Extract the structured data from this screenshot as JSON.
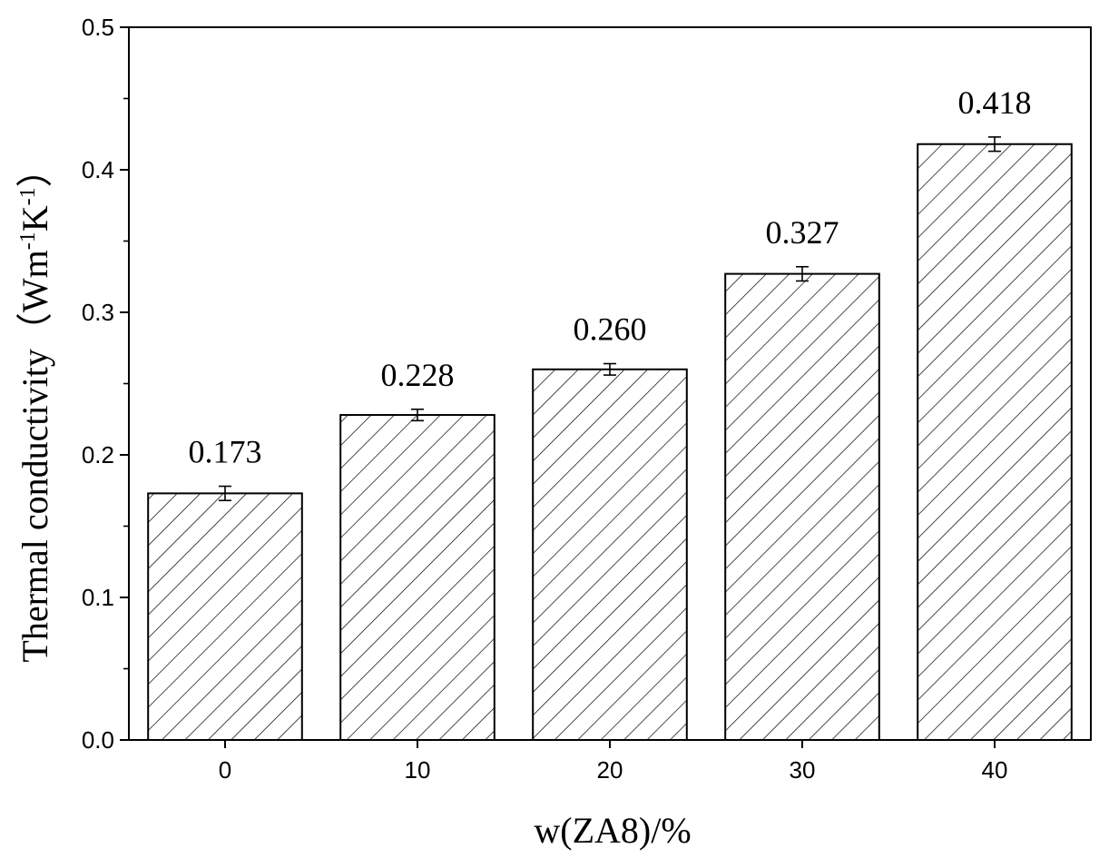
{
  "chart_data": {
    "type": "bar",
    "title": "",
    "xlabel": "w(ZA8)/%",
    "ylabel": {
      "main": "Thermal conductivity（Wm",
      "sup1": "-1",
      "mid": "K",
      "sup2": "-1",
      "end": "）"
    },
    "categories": [
      "0",
      "10",
      "20",
      "30",
      "40"
    ],
    "values": [
      0.173,
      0.228,
      0.26,
      0.327,
      0.418
    ],
    "value_labels": [
      "0.173",
      "0.228",
      "0.260",
      "0.327",
      "0.418"
    ],
    "errors": [
      0.005,
      0.004,
      0.004,
      0.005,
      0.005
    ],
    "ylim": [
      0.0,
      0.5
    ],
    "yticks": [
      "0.0",
      "0.1",
      "0.2",
      "0.3",
      "0.4",
      "0.5"
    ],
    "grid": false,
    "legend": "none",
    "bar_fill": "hatched",
    "colors": {
      "stroke": "#000000",
      "background": "#ffffff"
    }
  }
}
